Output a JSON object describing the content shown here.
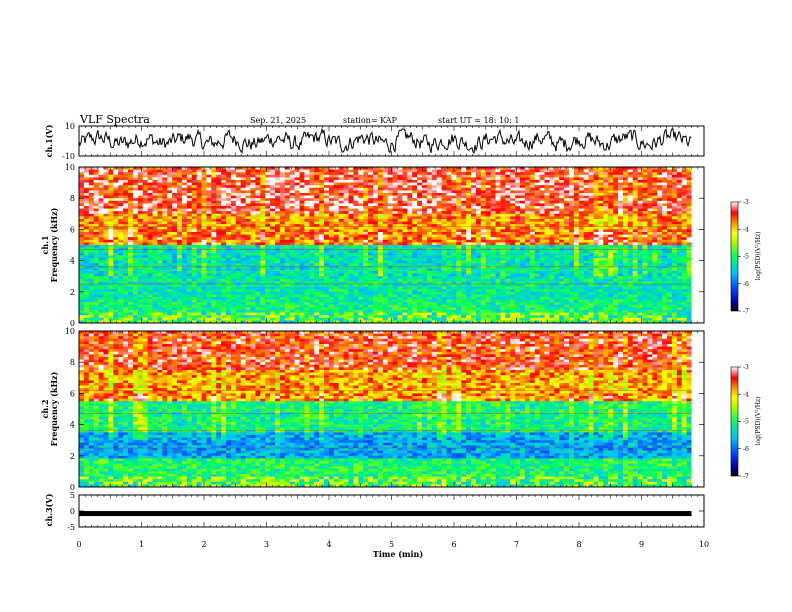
{
  "header": {
    "title": "VLF Spectra",
    "date": "Sep. 21, 2025",
    "station": "station= KAP",
    "start": "start  UT =   18: 10: 1"
  },
  "chart_data": [
    {
      "type": "line",
      "panel": "ch1-waveform",
      "ylabel": "ch.1(V)",
      "ylim": [
        -10,
        10
      ],
      "ytick_labels": [
        "10",
        "-10"
      ],
      "xlim": [
        0,
        10
      ],
      "data_extent_min": 9.8,
      "description_series": "noisy waveform oscillating roughly between -8 and 8 V"
    },
    {
      "type": "heatmap",
      "panel": "ch1-spectrogram",
      "ylabel": "Frequency  (kHz)",
      "channel_label": "ch.1",
      "ylim": [
        0,
        10
      ],
      "ytick_labels": [
        "0",
        "2",
        "4",
        "6",
        "8",
        "10"
      ],
      "bands": [
        {
          "from_khz": 0,
          "to_khz": 0.5,
          "log_psd": -4.3
        },
        {
          "from_khz": 0.5,
          "to_khz": 1.5,
          "log_psd": -5.1
        },
        {
          "from_khz": 1.5,
          "to_khz": 3.0,
          "log_psd": -5.2
        },
        {
          "from_khz": 3.0,
          "to_khz": 5.0,
          "log_psd": -5.3
        },
        {
          "from_khz": 5.0,
          "to_khz": 7.0,
          "log_psd": -3.7
        },
        {
          "from_khz": 7.0,
          "to_khz": 10.0,
          "log_psd": -3.3
        }
      ],
      "colorbar": {
        "label": "log(PSD)(V²/Hz)",
        "ticks": [
          "-3",
          "-4",
          "-5",
          "-6",
          "-7"
        ],
        "range": [
          -7,
          -3
        ]
      }
    },
    {
      "type": "heatmap",
      "panel": "ch2-spectrogram",
      "ylabel": "Frequency  (kHz)",
      "channel_label": "ch.2",
      "ylim": [
        0,
        10
      ],
      "ytick_labels": [
        "0",
        "2",
        "4",
        "6",
        "8",
        "10"
      ],
      "bands": [
        {
          "from_khz": 0,
          "to_khz": 0.4,
          "log_psd": -4.4
        },
        {
          "from_khz": 0.4,
          "to_khz": 1.8,
          "log_psd": -5.0
        },
        {
          "from_khz": 1.8,
          "to_khz": 3.5,
          "log_psd": -5.7
        },
        {
          "from_khz": 3.5,
          "to_khz": 5.5,
          "log_psd": -5.1
        },
        {
          "from_khz": 5.5,
          "to_khz": 7.5,
          "log_psd": -3.8
        },
        {
          "from_khz": 7.5,
          "to_khz": 10.0,
          "log_psd": -3.4
        }
      ],
      "colorbar": {
        "label": "log(PSD)(V²/Hz)",
        "ticks": [
          "-3",
          "-4",
          "-5",
          "-6",
          "-7"
        ],
        "range": [
          -7,
          -3
        ]
      }
    },
    {
      "type": "line",
      "panel": "ch3-waveform",
      "ylabel": "ch.3(V)",
      "ylim": [
        -5,
        5
      ],
      "ytick_labels": [
        "5",
        "0",
        "-5"
      ],
      "level_v": -0.8,
      "xlim": [
        0,
        10
      ],
      "data_extent_min": 9.8
    }
  ],
  "x_axis": {
    "label": "Time  (min)",
    "ticks": [
      "0",
      "1",
      "2",
      "3",
      "4",
      "5",
      "6",
      "7",
      "8",
      "9",
      "10"
    ]
  },
  "colors": {
    "waveform": "#000000",
    "colormap": [
      "#0000a0",
      "#0040ff",
      "#00c0ff",
      "#00ff80",
      "#80ff00",
      "#ffff00",
      "#ff9000",
      "#ff2000",
      "#ffffff"
    ]
  }
}
